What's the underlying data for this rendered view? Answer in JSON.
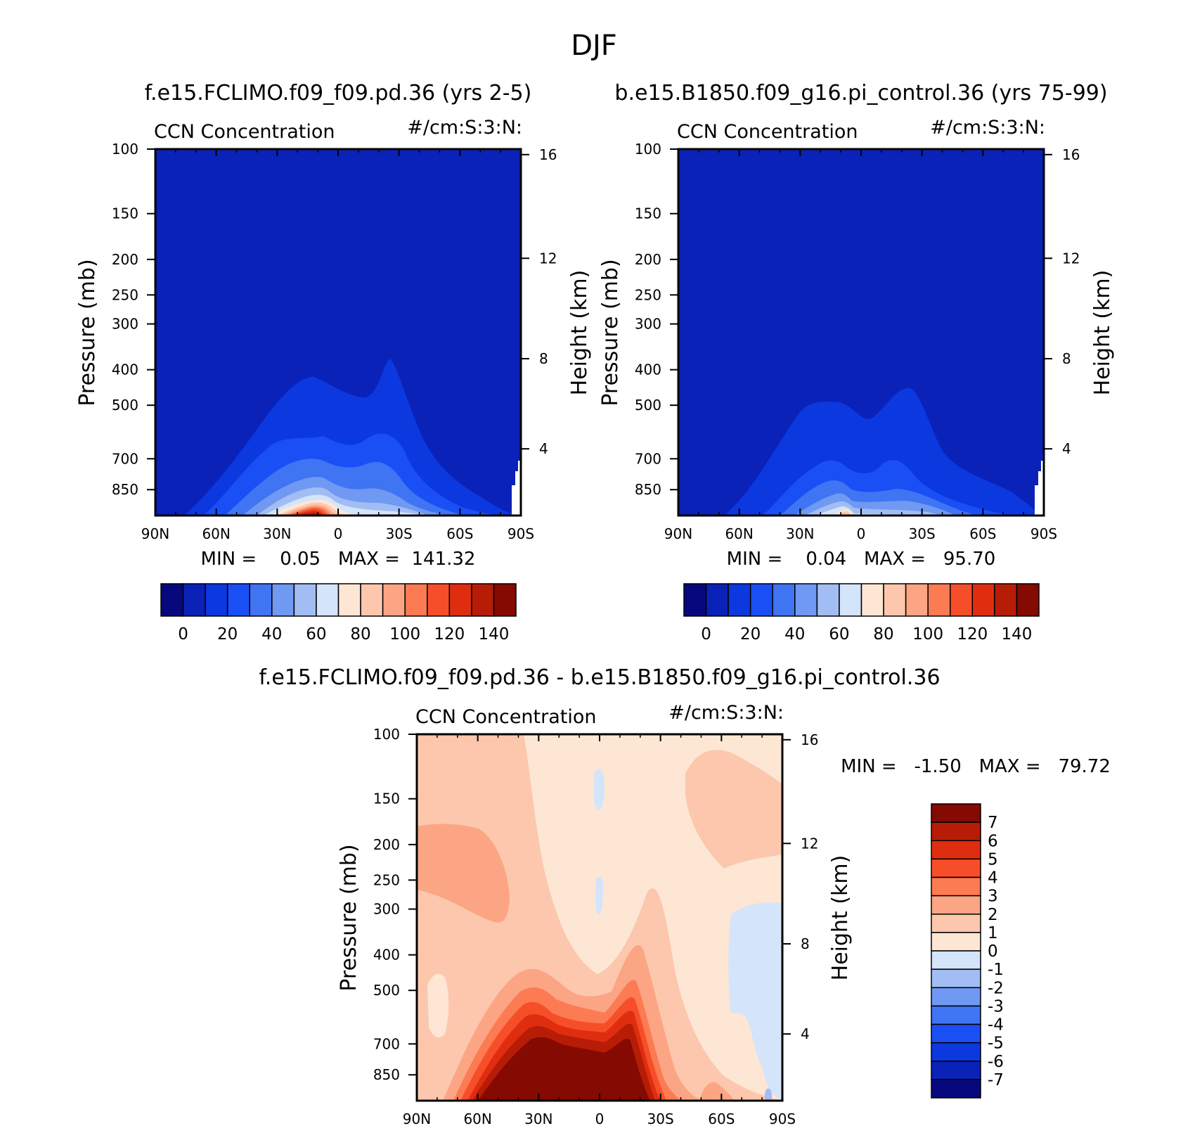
{
  "page_title": "DJF",
  "colors": {
    "background_low": "#0a22b8",
    "frame": "#000000"
  },
  "chart_data": [
    {
      "type": "heatmap",
      "id": "left",
      "title": "f.e15.FCLIMO.f09_f09.pd.36 (yrs 2-5)",
      "variable": "CCN Concentration",
      "units": "#/cm:S:3:N:",
      "xlabel": "",
      "ylabel": "Pressure (mb)",
      "ylabel_right": "Height (km)",
      "x_ticks": [
        "90N",
        "60N",
        "30N",
        "0",
        "30S",
        "60S",
        "90S"
      ],
      "y_ticks": [
        "100",
        "150",
        "200",
        "250",
        "300",
        "400",
        "500",
        "700",
        "850"
      ],
      "height_ticks": [
        "16",
        "12",
        "8",
        "4"
      ],
      "min_max_text": "MIN =    0.05   MAX =  141.32",
      "min": 0.05,
      "max": 141.32,
      "colorbar": {
        "orientation": "horizontal",
        "labels": [
          "0",
          "20",
          "40",
          "60",
          "80",
          "100",
          "120",
          "140"
        ],
        "colors": [
          "#08087e",
          "#0a22b8",
          "#0c38e0",
          "#1a4ff5",
          "#3f74f3",
          "#6f99f2",
          "#a2bdf3",
          "#d4e4fb",
          "#fde6d4",
          "#fcc7ad",
          "#fca584",
          "#fc7b53",
          "#f74e2a",
          "#de2e0f",
          "#b71c07",
          "#840a02"
        ]
      }
    },
    {
      "type": "heatmap",
      "id": "right",
      "title": "b.e15.B1850.f09_g16.pi_control.36 (yrs 75-99)",
      "variable": "CCN Concentration",
      "units": "#/cm:S:3:N:",
      "xlabel": "",
      "ylabel": "Pressure (mb)",
      "ylabel_right": "Height (km)",
      "x_ticks": [
        "90N",
        "60N",
        "30N",
        "0",
        "30S",
        "60S",
        "90S"
      ],
      "y_ticks": [
        "100",
        "150",
        "200",
        "250",
        "300",
        "400",
        "500",
        "700",
        "850"
      ],
      "height_ticks": [
        "16",
        "12",
        "8",
        "4"
      ],
      "min_max_text": "MIN =    0.04   MAX =   95.70",
      "min": 0.04,
      "max": 95.7,
      "colorbar": {
        "orientation": "horizontal",
        "labels": [
          "0",
          "20",
          "40",
          "60",
          "80",
          "100",
          "120",
          "140"
        ],
        "colors": [
          "#08087e",
          "#0a22b8",
          "#0c38e0",
          "#1a4ff5",
          "#3f74f3",
          "#6f99f2",
          "#a2bdf3",
          "#d4e4fb",
          "#fde6d4",
          "#fcc7ad",
          "#fca584",
          "#fc7b53",
          "#f74e2a",
          "#de2e0f",
          "#b71c07",
          "#840a02"
        ]
      }
    },
    {
      "type": "heatmap",
      "id": "diff",
      "title": "f.e15.FCLIMO.f09_f09.pd.36 - b.e15.B1850.f09_g16.pi_control.36",
      "variable": "CCN Concentration",
      "units": "#/cm:S:3:N:",
      "xlabel": "",
      "ylabel": "Pressure (mb)",
      "ylabel_right": "Height (km)",
      "x_ticks": [
        "90N",
        "60N",
        "30N",
        "0",
        "30S",
        "60S",
        "90S"
      ],
      "y_ticks": [
        "100",
        "150",
        "200",
        "250",
        "300",
        "400",
        "500",
        "700",
        "850"
      ],
      "height_ticks": [
        "16",
        "12",
        "8",
        "4"
      ],
      "min_max_text": "MIN =   -1.50   MAX =   79.72",
      "min": -1.5,
      "max": 79.72,
      "colorbar": {
        "orientation": "vertical",
        "labels": [
          "7",
          "6",
          "5",
          "4",
          "3",
          "2",
          "1",
          "0",
          "-1",
          "-2",
          "-3",
          "-4",
          "-5",
          "-6",
          "-7"
        ],
        "colors": [
          "#840a02",
          "#b71c07",
          "#de2e0f",
          "#f74e2a",
          "#fc7b53",
          "#fca584",
          "#fcc7ad",
          "#fde6d4",
          "#d4e4fb",
          "#a2bdf3",
          "#6f99f2",
          "#3f74f3",
          "#1a4ff5",
          "#0c38e0",
          "#0a22b8",
          "#08087e"
        ]
      }
    }
  ]
}
